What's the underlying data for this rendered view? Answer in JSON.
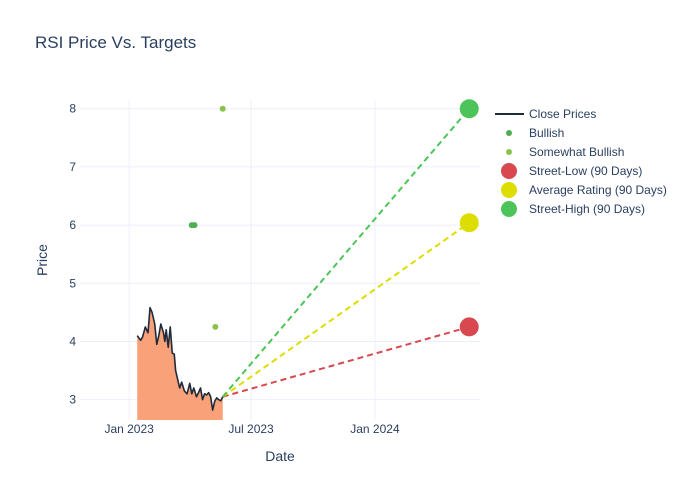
{
  "chart_data": {
    "type": "line",
    "title": "RSI Price Vs. Targets",
    "xlabel": "Date",
    "ylabel": "Price",
    "xlim": [
      "2022-10-20",
      "2024-06-05"
    ],
    "ylim": [
      2.65,
      8.15
    ],
    "x_ticks": [
      {
        "date": "2023-01-01",
        "label": "Jan 2023"
      },
      {
        "date": "2023-07-01",
        "label": "Jul 2023"
      },
      {
        "date": "2024-01-01",
        "label": "Jan 2024"
      }
    ],
    "y_ticks": [
      3,
      4,
      5,
      6,
      7,
      8
    ],
    "grid": true,
    "legend_position": "top-right",
    "series": [
      {
        "name": "Close Prices",
        "kind": "line-area",
        "color": "#1f2a3a",
        "fill": "#f9a27a",
        "x": [
          "2023-01-13",
          "2023-01-18",
          "2023-01-21",
          "2023-01-25",
          "2023-01-29",
          "2023-02-01",
          "2023-02-04",
          "2023-02-08",
          "2023-02-11",
          "2023-02-14",
          "2023-02-17",
          "2023-02-21",
          "2023-02-23",
          "2023-02-25",
          "2023-02-28",
          "2023-03-03",
          "2023-03-06",
          "2023-03-09",
          "2023-03-11",
          "2023-03-14",
          "2023-03-17",
          "2023-03-20",
          "2023-03-24",
          "2023-03-28",
          "2023-04-01",
          "2023-04-04",
          "2023-04-07",
          "2023-04-11",
          "2023-04-14",
          "2023-04-17",
          "2023-04-20",
          "2023-04-23",
          "2023-04-26",
          "2023-04-29",
          "2023-05-02",
          "2023-05-05",
          "2023-05-08",
          "2023-05-11",
          "2023-05-14",
          "2023-05-17",
          "2023-05-20"
        ],
        "y": [
          4.1,
          4.02,
          4.08,
          4.25,
          4.15,
          4.58,
          4.5,
          4.3,
          3.95,
          4.1,
          4.3,
          4.15,
          4.0,
          4.2,
          3.9,
          4.25,
          3.8,
          3.78,
          3.5,
          3.35,
          3.2,
          3.3,
          3.15,
          3.1,
          3.28,
          3.1,
          3.2,
          3.05,
          3.12,
          3.2,
          3.0,
          3.1,
          3.08,
          3.12,
          3.05,
          2.82,
          2.97,
          3.03,
          3.0,
          2.98,
          3.05
        ]
      },
      {
        "name": "Bullish",
        "kind": "markers",
        "color": "#4caf50",
        "x": [
          "2023-04-04",
          "2023-04-08"
        ],
        "y": [
          6.0,
          6.0
        ]
      },
      {
        "name": "Somewhat Bullish",
        "kind": "markers",
        "color": "#8bc34a",
        "x": [
          "2023-05-09",
          "2023-05-20"
        ],
        "y": [
          4.25,
          8.0
        ]
      },
      {
        "name": "Street-Low (90 Days)",
        "kind": "target",
        "color": "#d9474f",
        "x": [
          "2023-05-20",
          "2024-05-20"
        ],
        "y": [
          3.05,
          4.25
        ]
      },
      {
        "name": "Average Rating (90 Days)",
        "kind": "target",
        "color": "#dddd00",
        "x": [
          "2023-05-20",
          "2024-05-20"
        ],
        "y": [
          3.05,
          6.04
        ]
      },
      {
        "name": "Street-High (90 Days)",
        "kind": "target",
        "color": "#4cc459",
        "x": [
          "2023-05-20",
          "2024-05-20"
        ],
        "y": [
          3.05,
          8.0
        ]
      }
    ]
  }
}
